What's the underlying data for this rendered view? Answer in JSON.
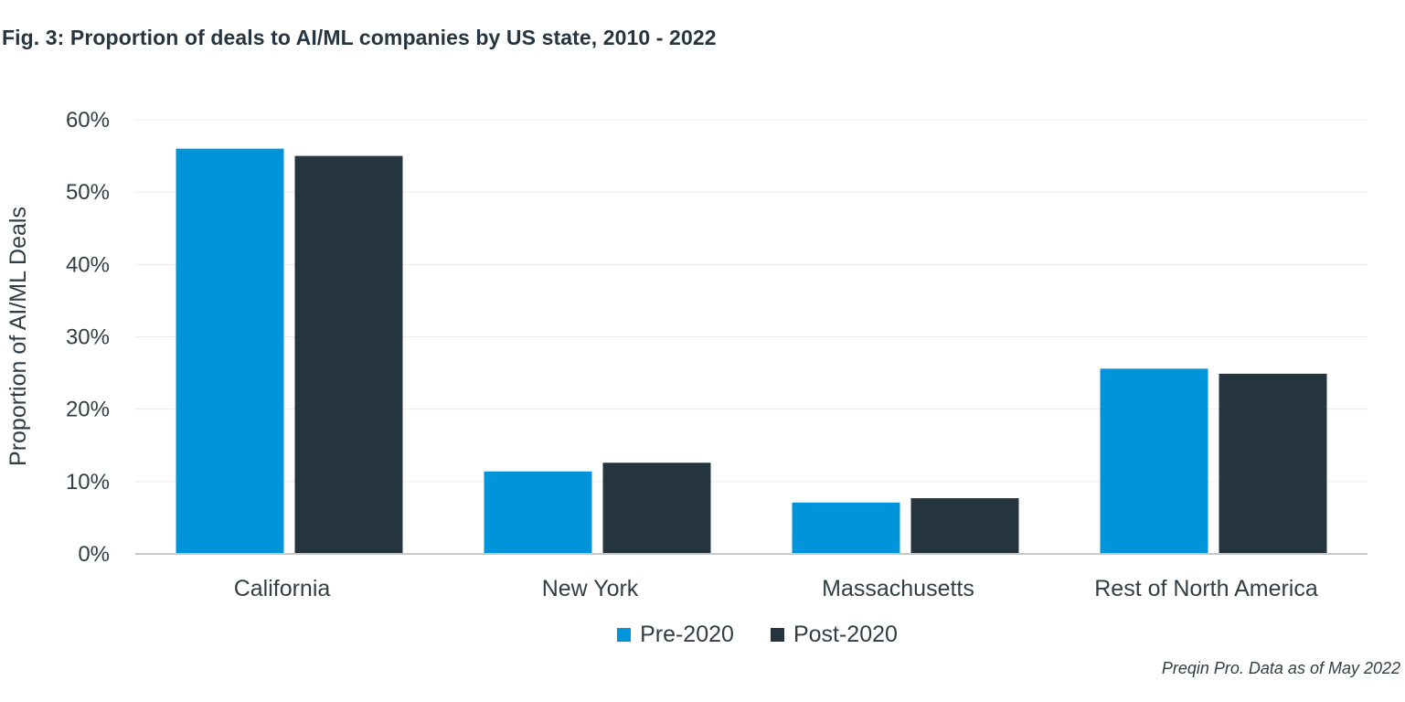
{
  "figure": {
    "title": "Fig. 3: Proportion of deals to AI/ML companies by US state, 2010 - 2022",
    "source": "Preqin Pro. Data as of May 2022"
  },
  "colors": {
    "pre_2020": "#0095da",
    "post_2020": "#25353f",
    "gridline": "#ececec",
    "axis": "#c8c8c8"
  },
  "chart_data": {
    "type": "bar",
    "title": "Fig. 3: Proportion of deals to AI/ML companies by US state, 2010 - 2022",
    "xlabel": "",
    "ylabel": "Proportion of AI/ML Deals",
    "categories": [
      "California",
      "New York",
      "Massachusetts",
      "Rest of North America"
    ],
    "series": [
      {
        "name": "Pre-2020",
        "values": [
          0.56,
          0.114,
          0.071,
          0.256
        ]
      },
      {
        "name": "Post-2020",
        "values": [
          0.55,
          0.126,
          0.077,
          0.249
        ]
      }
    ],
    "ylim": [
      0,
      0.6
    ],
    "yticks": [
      0,
      0.1,
      0.2,
      0.3,
      0.4,
      0.5,
      0.6
    ],
    "ytick_labels": [
      "0%",
      "10%",
      "20%",
      "30%",
      "40%",
      "50%",
      "60%"
    ],
    "grid": true,
    "legend_position": "bottom"
  }
}
